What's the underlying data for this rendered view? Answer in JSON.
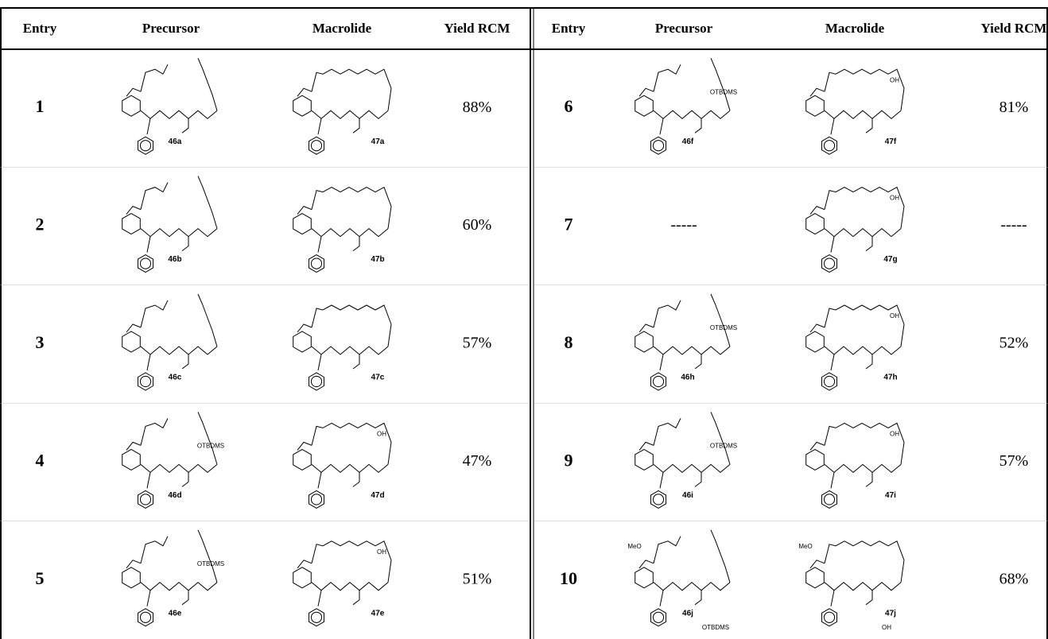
{
  "table": {
    "headers": [
      "Entry",
      "Precursor",
      "Macrolide",
      "Yield RCM",
      "Entry",
      "Precursor",
      "Macrolide",
      "Yield RCM"
    ],
    "rows": [
      {
        "entry": "1",
        "precursor": "46a",
        "macrolide": "47a",
        "yield": "88%",
        "precursor_groups": [],
        "macrolide_groups": []
      },
      {
        "entry": "2",
        "precursor": "46b",
        "macrolide": "47b",
        "yield": "60%",
        "precursor_groups": [],
        "macrolide_groups": []
      },
      {
        "entry": "3",
        "precursor": "46c",
        "macrolide": "47c",
        "yield": "57%",
        "precursor_groups": [],
        "macrolide_groups": []
      },
      {
        "entry": "4",
        "precursor": "46d",
        "macrolide": "47d",
        "yield": "47%",
        "precursor_groups": [
          "OTBDMS"
        ],
        "macrolide_groups": [
          "OH"
        ]
      },
      {
        "entry": "5",
        "precursor": "46e",
        "macrolide": "47e",
        "yield": "51%",
        "precursor_groups": [
          "OTBDMS"
        ],
        "macrolide_groups": [
          "OH"
        ]
      },
      {
        "entry": "6",
        "precursor": "46f",
        "macrolide": "47f",
        "yield": "81%",
        "precursor_groups": [
          "OTBDMS"
        ],
        "macrolide_groups": [
          "OH"
        ]
      },
      {
        "entry": "7",
        "precursor": "-----",
        "macrolide": "47g",
        "yield": "-----",
        "precursor_groups": [],
        "macrolide_groups": [
          "OH"
        ]
      },
      {
        "entry": "8",
        "precursor": "46h",
        "macrolide": "47h",
        "yield": "52%",
        "precursor_groups": [
          "OTBDMS"
        ],
        "macrolide_groups": [
          "OH"
        ]
      },
      {
        "entry": "9",
        "precursor": "46i",
        "macrolide": "47i",
        "yield": "57%",
        "precursor_groups": [
          "OTBDMS"
        ],
        "macrolide_groups": [
          "OH"
        ]
      },
      {
        "entry": "10",
        "precursor": "46j",
        "macrolide": "47j",
        "yield": "68%",
        "precursor_groups": [
          "MeO",
          "OTBDMS"
        ],
        "macrolide_groups": [
          "MeO",
          "OH"
        ]
      }
    ]
  }
}
